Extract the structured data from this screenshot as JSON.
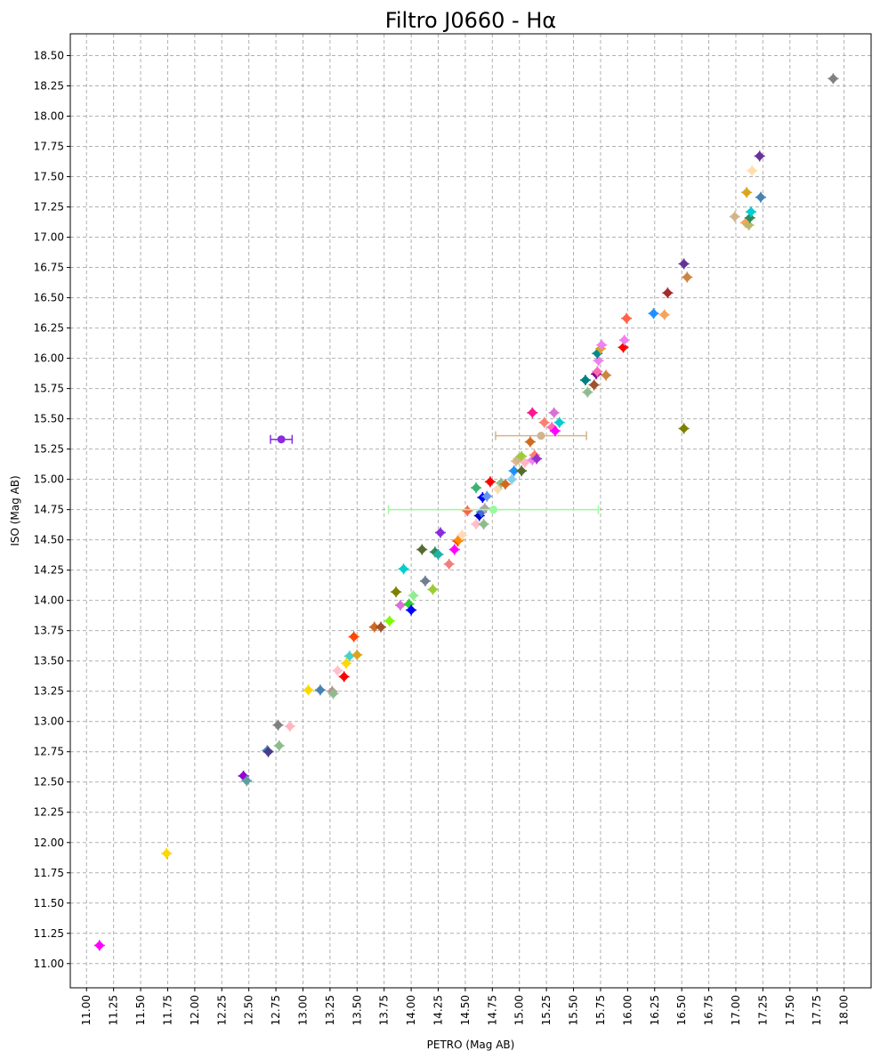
{
  "chart_data": {
    "type": "scatter",
    "title": "Filtro J0660 - Hα",
    "xlabel": "PETRO (Mag AB)",
    "ylabel": "ISO (Mag AB)",
    "xlim": [
      10.85,
      18.25
    ],
    "ylim": [
      10.8,
      18.68
    ],
    "x_ticks": [
      "11.00",
      "11.25",
      "11.50",
      "11.75",
      "12.00",
      "12.25",
      "12.50",
      "12.75",
      "13.00",
      "13.25",
      "13.50",
      "13.75",
      "14.00",
      "14.25",
      "14.50",
      "14.75",
      "15.00",
      "15.25",
      "15.50",
      "15.75",
      "16.00",
      "16.25",
      "16.50",
      "16.75",
      "17.00",
      "17.25",
      "17.50",
      "17.75",
      "18.00"
    ],
    "y_ticks": [
      "11.00",
      "11.25",
      "11.50",
      "11.75",
      "12.00",
      "12.25",
      "12.50",
      "12.75",
      "13.00",
      "13.25",
      "13.50",
      "13.75",
      "14.00",
      "14.25",
      "14.50",
      "14.75",
      "15.00",
      "15.25",
      "15.50",
      "15.75",
      "16.00",
      "16.25",
      "16.50",
      "16.75",
      "17.00",
      "17.25",
      "17.50",
      "17.75",
      "18.00",
      "18.25",
      "18.50"
    ],
    "grid": true,
    "points": [
      {
        "x": 11.12,
        "y": 11.15,
        "color": "#ff00ff"
      },
      {
        "x": 11.74,
        "y": 11.91,
        "color": "#ffd700"
      },
      {
        "x": 12.45,
        "y": 12.55,
        "color": "#9400d3"
      },
      {
        "x": 12.48,
        "y": 12.51,
        "color": "#5f9ea0"
      },
      {
        "x": 12.67,
        "y": 12.76,
        "color": "#4682b4"
      },
      {
        "x": 12.68,
        "y": 12.75,
        "color": "#483d8b"
      },
      {
        "x": 12.78,
        "y": 12.8,
        "color": "#8fbc8f"
      },
      {
        "x": 12.77,
        "y": 12.97,
        "color": "#808080"
      },
      {
        "x": 12.88,
        "y": 12.96,
        "color": "#ffb6c1"
      },
      {
        "x": 12.8,
        "y": 15.33,
        "color": "#8a2be2",
        "xerr": 0.1
      },
      {
        "x": 13.05,
        "y": 13.26,
        "color": "#ffd700"
      },
      {
        "x": 13.16,
        "y": 13.26,
        "color": "#4682b4"
      },
      {
        "x": 13.27,
        "y": 13.25,
        "color": "#bc8f8f"
      },
      {
        "x": 13.28,
        "y": 13.23,
        "color": "#8fbc8f"
      },
      {
        "x": 13.32,
        "y": 13.42,
        "color": "#ffc0cb"
      },
      {
        "x": 13.38,
        "y": 13.37,
        "color": "#ff0000"
      },
      {
        "x": 13.4,
        "y": 13.48,
        "color": "#ffd700"
      },
      {
        "x": 13.43,
        "y": 13.54,
        "color": "#48d1cc"
      },
      {
        "x": 13.5,
        "y": 13.55,
        "color": "#daa520"
      },
      {
        "x": 13.47,
        "y": 13.7,
        "color": "#ff4500"
      },
      {
        "x": 13.66,
        "y": 13.78,
        "color": "#d2691e"
      },
      {
        "x": 13.72,
        "y": 13.78,
        "color": "#a0522d"
      },
      {
        "x": 13.8,
        "y": 13.83,
        "color": "#7cfc00"
      },
      {
        "x": 13.86,
        "y": 14.07,
        "color": "#808000"
      },
      {
        "x": 13.9,
        "y": 13.96,
        "color": "#da70d6"
      },
      {
        "x": 13.93,
        "y": 14.26,
        "color": "#00ced1"
      },
      {
        "x": 13.98,
        "y": 13.97,
        "color": "#32cd32"
      },
      {
        "x": 14.0,
        "y": 13.92,
        "color": "#0000ff"
      },
      {
        "x": 14.02,
        "y": 14.04,
        "color": "#90ee90"
      },
      {
        "x": 14.1,
        "y": 14.42,
        "color": "#556b2f"
      },
      {
        "x": 14.13,
        "y": 14.16,
        "color": "#708090"
      },
      {
        "x": 14.2,
        "y": 14.09,
        "color": "#9acd32"
      },
      {
        "x": 14.22,
        "y": 14.4,
        "color": "#2e8b57"
      },
      {
        "x": 14.25,
        "y": 14.38,
        "color": "#20b2aa"
      },
      {
        "x": 14.27,
        "y": 14.56,
        "color": "#8a2be2"
      },
      {
        "x": 14.35,
        "y": 14.3,
        "color": "#f08080"
      },
      {
        "x": 14.4,
        "y": 14.42,
        "color": "#ff00ff"
      },
      {
        "x": 14.43,
        "y": 14.49,
        "color": "#ff4500"
      },
      {
        "x": 14.44,
        "y": 14.5,
        "color": "#ff8c00"
      },
      {
        "x": 14.47,
        "y": 14.54,
        "color": "#ffdab9"
      },
      {
        "x": 14.52,
        "y": 14.74,
        "color": "#ff6347"
      },
      {
        "x": 14.6,
        "y": 14.63,
        "color": "#ffc0cb"
      },
      {
        "x": 14.6,
        "y": 14.93,
        "color": "#3cb371"
      },
      {
        "x": 14.63,
        "y": 14.7,
        "color": "#0000cd"
      },
      {
        "x": 14.65,
        "y": 14.73,
        "color": "#4169e1"
      },
      {
        "x": 14.66,
        "y": 14.85,
        "color": "#0000ff"
      },
      {
        "x": 14.67,
        "y": 14.63,
        "color": "#8fbc8f"
      },
      {
        "x": 14.68,
        "y": 14.76,
        "color": "#a9a9a9"
      },
      {
        "x": 14.7,
        "y": 14.86,
        "color": "#6495ed"
      },
      {
        "x": 14.73,
        "y": 14.98,
        "color": "#ff0000"
      },
      {
        "x": 14.76,
        "y": 14.75,
        "color": "#98fb98",
        "xerr": 0.97
      },
      {
        "x": 14.8,
        "y": 14.92,
        "color": "#f5deb3"
      },
      {
        "x": 14.83,
        "y": 14.97,
        "color": "#8fbc8f"
      },
      {
        "x": 14.87,
        "y": 14.96,
        "color": "#d2691e"
      },
      {
        "x": 14.93,
        "y": 15.0,
        "color": "#87ceeb"
      },
      {
        "x": 14.95,
        "y": 15.07,
        "color": "#1e90ff"
      },
      {
        "x": 14.97,
        "y": 15.15,
        "color": "#deb887"
      },
      {
        "x": 14.99,
        "y": 15.17,
        "color": "#d2b48c"
      },
      {
        "x": 15.02,
        "y": 15.07,
        "color": "#556b2f"
      },
      {
        "x": 15.02,
        "y": 15.19,
        "color": "#9acd32"
      },
      {
        "x": 15.05,
        "y": 15.14,
        "color": "#ffb6c1"
      },
      {
        "x": 15.1,
        "y": 15.31,
        "color": "#d2691e"
      },
      {
        "x": 15.12,
        "y": 15.16,
        "color": "#ee82ee"
      },
      {
        "x": 15.14,
        "y": 15.2,
        "color": "#fa8072"
      },
      {
        "x": 15.16,
        "y": 15.17,
        "color": "#9932cc"
      },
      {
        "x": 15.12,
        "y": 15.55,
        "color": "#ff1493"
      },
      {
        "x": 15.2,
        "y": 15.36,
        "color": "#d2b48c",
        "xerr": 0.42
      },
      {
        "x": 15.23,
        "y": 15.47,
        "color": "#fa8072"
      },
      {
        "x": 15.3,
        "y": 15.43,
        "color": "#ff69b4"
      },
      {
        "x": 15.32,
        "y": 15.55,
        "color": "#da70d6"
      },
      {
        "x": 15.33,
        "y": 15.4,
        "color": "#ff00ff"
      },
      {
        "x": 15.37,
        "y": 15.47,
        "color": "#00ced1"
      },
      {
        "x": 15.61,
        "y": 15.82,
        "color": "#008080"
      },
      {
        "x": 15.63,
        "y": 15.72,
        "color": "#8fbc8f"
      },
      {
        "x": 15.69,
        "y": 15.78,
        "color": "#a0522d"
      },
      {
        "x": 15.71,
        "y": 15.87,
        "color": "#8b008b"
      },
      {
        "x": 15.72,
        "y": 15.89,
        "color": "#ff69b4"
      },
      {
        "x": 15.73,
        "y": 15.98,
        "color": "#ee82ee"
      },
      {
        "x": 15.72,
        "y": 16.04,
        "color": "#008b8b"
      },
      {
        "x": 15.75,
        "y": 16.08,
        "color": "#daa520"
      },
      {
        "x": 15.76,
        "y": 16.11,
        "color": "#ee82ee"
      },
      {
        "x": 15.8,
        "y": 15.86,
        "color": "#cd853f"
      },
      {
        "x": 15.96,
        "y": 16.09,
        "color": "#ff0000"
      },
      {
        "x": 15.97,
        "y": 16.15,
        "color": "#ee82ee"
      },
      {
        "x": 15.99,
        "y": 16.33,
        "color": "#ff6347"
      },
      {
        "x": 16.24,
        "y": 16.37,
        "color": "#1e90ff"
      },
      {
        "x": 16.34,
        "y": 16.36,
        "color": "#f4a460"
      },
      {
        "x": 16.37,
        "y": 16.54,
        "color": "#a52a2a"
      },
      {
        "x": 16.52,
        "y": 16.78,
        "color": "#663399"
      },
      {
        "x": 16.55,
        "y": 16.67,
        "color": "#cd853f"
      },
      {
        "x": 16.52,
        "y": 15.42,
        "color": "#808000"
      },
      {
        "x": 16.99,
        "y": 17.17,
        "color": "#d2b48c"
      },
      {
        "x": 17.09,
        "y": 17.12,
        "color": "#f4a460"
      },
      {
        "x": 17.1,
        "y": 17.37,
        "color": "#daa520"
      },
      {
        "x": 17.12,
        "y": 17.1,
        "color": "#bdb76b"
      },
      {
        "x": 17.13,
        "y": 17.16,
        "color": "#2e8b57"
      },
      {
        "x": 17.14,
        "y": 17.21,
        "color": "#00ced1"
      },
      {
        "x": 17.15,
        "y": 17.55,
        "color": "#ffdead"
      },
      {
        "x": 17.22,
        "y": 17.67,
        "color": "#663399"
      },
      {
        "x": 17.23,
        "y": 17.33,
        "color": "#4682b4"
      },
      {
        "x": 17.9,
        "y": 18.31,
        "color": "#808080"
      }
    ]
  }
}
